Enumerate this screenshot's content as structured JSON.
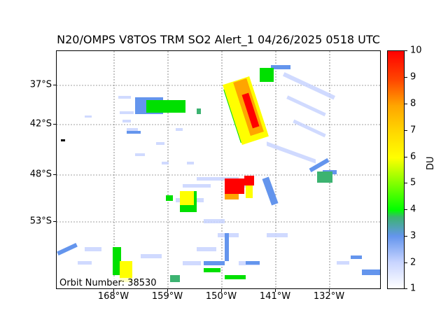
{
  "title": "N20/OMPS V8TOS TRM SO2 Alert_1 04/26/2025 0518 UTC",
  "map": {
    "lat_labels": [
      "37°S",
      "42°S",
      "48°S",
      "53°S"
    ],
    "lon_labels": [
      "168°W",
      "159°W",
      "150°W",
      "141°W",
      "132°W"
    ],
    "orbit_text": "Orbit Number: 38530"
  },
  "colorbar": {
    "label": "DU",
    "min": 1,
    "max": 10,
    "ticks": [
      "10",
      "9",
      "8",
      "7",
      "6",
      "5",
      "4",
      "3",
      "2",
      "1"
    ],
    "colors": {
      "1": "#ffffff",
      "2": "#c8d4ff",
      "3": "#6495ed",
      "3.5": "#3cb371",
      "4": "#00ff00",
      "5": "#7fff00",
      "6": "#ffff00",
      "7": "#ffd700",
      "8": "#ffa500",
      "9": "#ff4500",
      "10": "#ff0000"
    }
  }
}
